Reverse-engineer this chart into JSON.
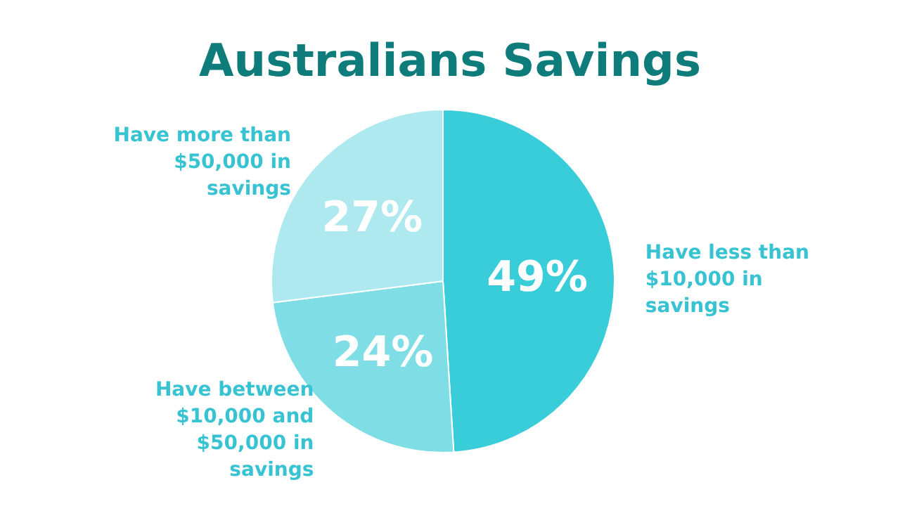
{
  "chart_data": {
    "type": "pie",
    "title": "Australians Savings",
    "categories": [
      "Have less than $10,000 in savings",
      "Have between $10,000 and $50,000 in savings",
      "Have more than $50,000 in savings"
    ],
    "values": [
      49,
      24,
      27
    ],
    "colors": [
      "#38cdd9",
      "#7fdde6",
      "#aee9ef"
    ],
    "value_labels": [
      "49%",
      "24%",
      "27%"
    ]
  }
}
